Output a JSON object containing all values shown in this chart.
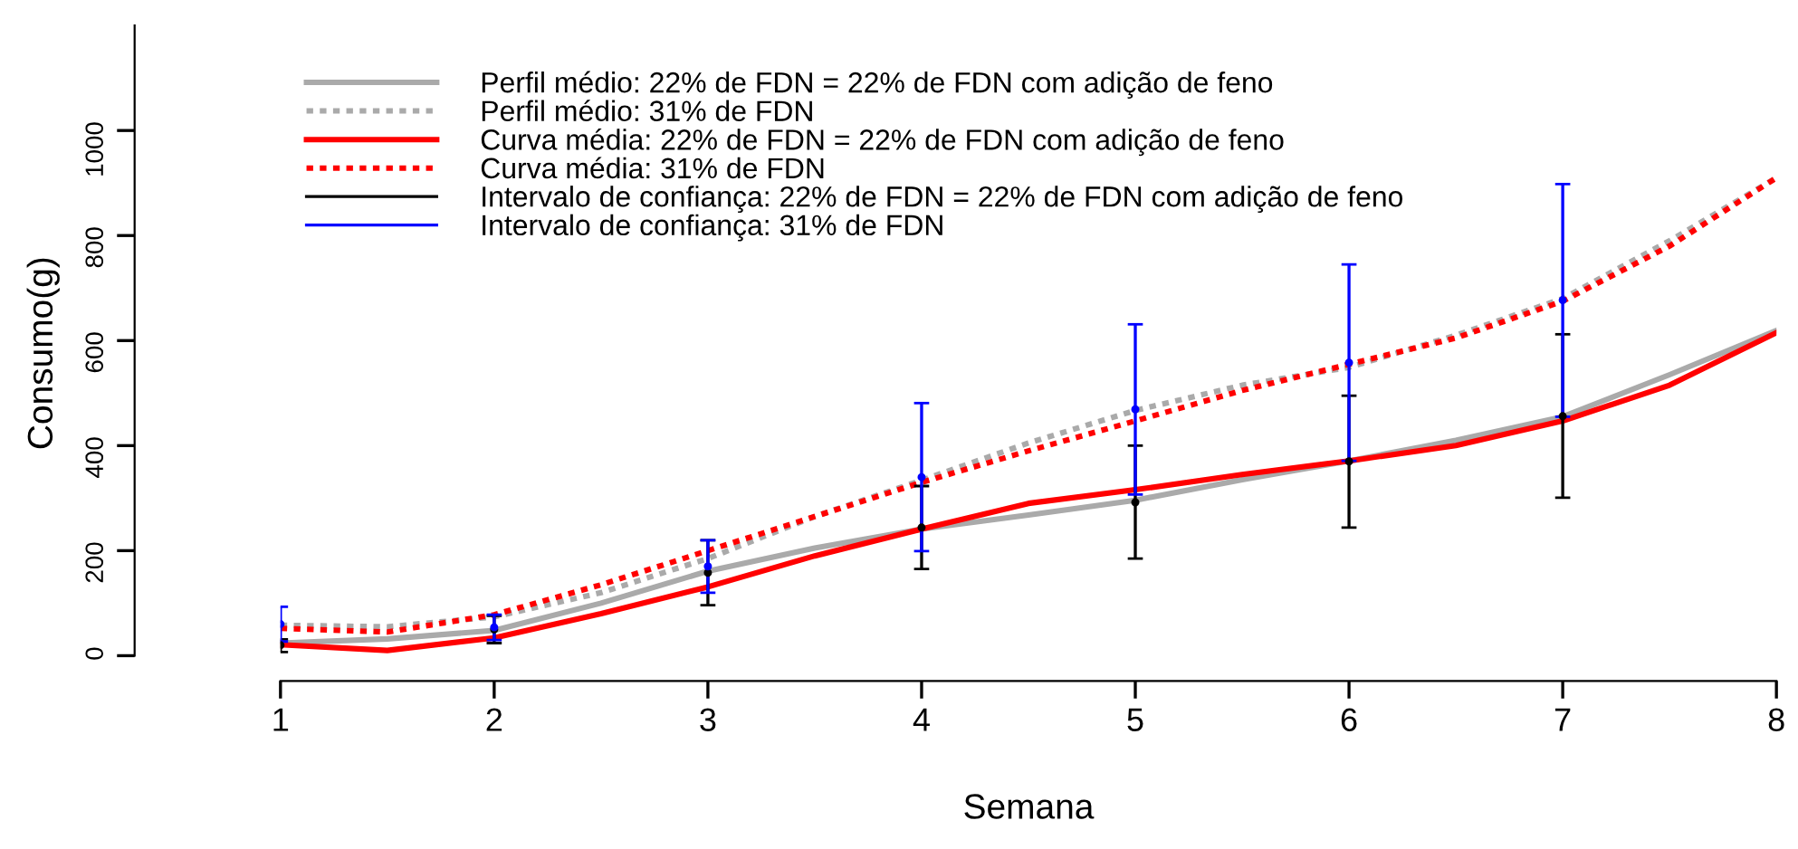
{
  "chart_data": {
    "type": "line",
    "xlabel": "Semana",
    "ylabel": "Consumo(g)",
    "xlim": [
      1,
      8
    ],
    "xticks": [
      1,
      2,
      3,
      4,
      5,
      6,
      7,
      8
    ],
    "ylim": [
      -48,
      1200
    ],
    "yticks": [
      0,
      200,
      400,
      600,
      800,
      1000
    ],
    "grid": false,
    "legend": "top left",
    "series": [
      {
        "name": "Perfil médio: 22% de FDN = 22% de FDN com adição de feno",
        "line_style": "solid",
        "color": "#aaaaaa",
        "x": [
          1,
          1.5,
          2,
          2.5,
          3,
          3.5,
          4,
          4.5,
          5,
          5.5,
          6,
          6.5,
          7,
          7.5,
          8
        ],
        "values": [
          24,
          32,
          48,
          100,
          161,
          205,
          241,
          268,
          296,
          335,
          371,
          410,
          455,
          535,
          619
        ]
      },
      {
        "name": "Perfil médio: 31% de FDN",
        "line_style": "dotted",
        "color": "#aaaaaa",
        "x": [
          1,
          1.5,
          2,
          2.5,
          3,
          3.5,
          4,
          4.5,
          5,
          5.5,
          6,
          6.5,
          7,
          7.5,
          8
        ],
        "values": [
          58,
          55,
          74,
          120,
          185,
          265,
          334,
          405,
          467,
          515,
          549,
          610,
          680,
          790,
          910
        ]
      },
      {
        "name": "Curva média: 22% de FDN = 22% de FDN com adição de feno",
        "line_style": "solid",
        "color": "#ff0000",
        "x": [
          1,
          1.5,
          2,
          2.5,
          3,
          3.5,
          4,
          4.5,
          5,
          5.5,
          6,
          6.5,
          7,
          7.5,
          8
        ],
        "values": [
          21,
          10,
          34,
          80,
          131,
          190,
          241,
          290,
          316,
          345,
          371,
          400,
          447,
          515,
          615
        ]
      },
      {
        "name": "Curva média: 31% de FDN",
        "line_style": "dotted",
        "color": "#ff0000",
        "x": [
          1,
          1.5,
          2,
          2.5,
          3,
          3.5,
          4,
          4.5,
          5,
          5.5,
          6,
          6.5,
          7,
          7.5,
          8
        ],
        "values": [
          52,
          45,
          78,
          135,
          200,
          265,
          330,
          390,
          447,
          505,
          555,
          605,
          675,
          780,
          910
        ]
      },
      {
        "name": "Intervalo de confiança: 22% de FDN = 22% de FDN com adição de feno",
        "type": "scatter",
        "marker": "circle",
        "color": "#000000",
        "x": [
          1,
          2,
          3,
          4,
          5,
          6,
          7
        ],
        "values": [
          20,
          50,
          158,
          244,
          292,
          370,
          456
        ],
        "errors": [
          [
            7,
            31
          ],
          [
            24,
            76
          ],
          [
            96,
            220
          ],
          [
            165,
            323
          ],
          [
            185,
            400
          ],
          [
            244,
            495
          ],
          [
            301,
            612
          ]
        ]
      },
      {
        "name": "Intervalo de confiança: 31% de FDN",
        "type": "scatter",
        "marker": "circle",
        "color": "#0000ff",
        "x": [
          1,
          2,
          3,
          4,
          5,
          6,
          7
        ],
        "values": [
          60,
          54,
          170,
          340,
          469,
          558,
          677
        ],
        "errors": [
          [
            27,
            93
          ],
          [
            30,
            78
          ],
          [
            120,
            220
          ],
          [
            199,
            481
          ],
          [
            307,
            631
          ],
          [
            371,
            745
          ],
          [
            455,
            898
          ]
        ]
      }
    ]
  }
}
